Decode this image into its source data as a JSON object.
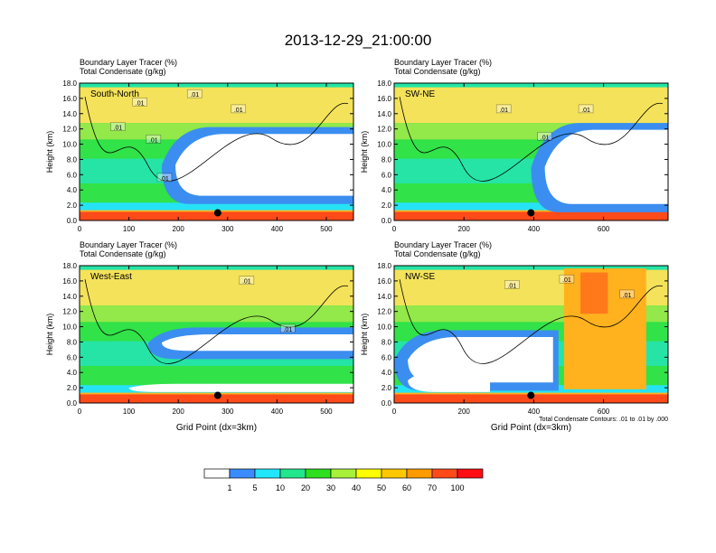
{
  "title": "2013-12-29_21:00:00",
  "chart_data": [
    {
      "type": "heatmap",
      "panel_label": "South-North",
      "subtitle_lines": [
        "Boundary Layer Tracer   (%)",
        "Total Condensate   (g/kg)"
      ],
      "ylabel": "Height (km)",
      "xlabel": "",
      "xlim": [
        0,
        555
      ],
      "ylim": [
        0,
        18
      ],
      "x_ticks": [
        0,
        100,
        200,
        300,
        400,
        500
      ],
      "y_ticks": [
        "0.0",
        "2.0",
        "4.0",
        "6.0",
        "8.0",
        "10.0",
        "12.0",
        "14.0",
        "16.0",
        "18.0"
      ],
      "contour_labels": [
        ".01",
        ".01",
        ".01",
        ".01",
        ".01",
        ".01"
      ],
      "marker": {
        "x": 280,
        "y": 1.0
      }
    },
    {
      "type": "heatmap",
      "panel_label": "SW-NE",
      "subtitle_lines": [
        "Boundary Layer Tracer   (%)",
        "Total Condensate   (g/kg)"
      ],
      "ylabel": "Height (km)",
      "xlabel": "",
      "xlim": [
        0,
        785
      ],
      "ylim": [
        0,
        18
      ],
      "x_ticks": [
        0,
        200,
        400,
        600
      ],
      "y_ticks": [
        "0.0",
        "2.0",
        "4.0",
        "6.0",
        "8.0",
        "10.0",
        "12.0",
        "14.0",
        "16.0",
        "18.0"
      ],
      "contour_labels": [
        ".01",
        ".01",
        ".01"
      ],
      "marker": {
        "x": 392,
        "y": 1.0
      }
    },
    {
      "type": "heatmap",
      "panel_label": "West-East",
      "subtitle_lines": [
        "Boundary Layer Tracer   (%)",
        "Total Condensate   (g/kg)"
      ],
      "ylabel": "Height (km)",
      "xlabel": "Grid Point (dx=3km)",
      "xlim": [
        0,
        555
      ],
      "ylim": [
        0,
        18
      ],
      "x_ticks": [
        0,
        100,
        200,
        300,
        400,
        500
      ],
      "y_ticks": [
        "0.0",
        "2.0",
        "4.0",
        "6.0",
        "8.0",
        "10.0",
        "12.0",
        "14.0",
        "16.0",
        "18.0"
      ],
      "contour_labels": [
        ".01",
        ".01"
      ],
      "marker": {
        "x": 280,
        "y": 1.0
      }
    },
    {
      "type": "heatmap",
      "panel_label": "NW-SE",
      "subtitle_lines": [
        "Boundary Layer Tracer   (%)",
        "Total Condensate   (g/kg)"
      ],
      "ylabel": "Height (km)",
      "xlabel": "Grid Point (dx=3km)",
      "xlim": [
        0,
        785
      ],
      "ylim": [
        0,
        18
      ],
      "x_ticks": [
        0,
        200,
        400,
        600
      ],
      "y_ticks": [
        "0.0",
        "2.0",
        "4.0",
        "6.0",
        "8.0",
        "10.0",
        "12.0",
        "14.0",
        "16.0",
        "18.0"
      ],
      "contour_labels": [
        ".01",
        ".01",
        ".01"
      ],
      "marker": {
        "x": 392,
        "y": 1.0
      },
      "annotation": "Total Condensate Contours: .01 to .01 by .000"
    }
  ],
  "colorbar": {
    "levels": [
      "1",
      "5",
      "10",
      "20",
      "30",
      "40",
      "50",
      "60",
      "70",
      "100"
    ],
    "colors": [
      "#ffffff",
      "#3a8cff",
      "#20e6ff",
      "#22e68c",
      "#2edf1e",
      "#a8f03a",
      "#ffff00",
      "#ffc800",
      "#ff9a00",
      "#ff4a1a",
      "#ff0f14"
    ]
  },
  "colors": {
    "tropo_upper": "#f4e25a",
    "tropo_mid": "#93e84a",
    "green": "#31e248",
    "teal": "#25e4a6",
    "blue": "#3b8ef0",
    "cyan": "#26e2f5",
    "orange": "#ffb21e",
    "red_surface": "#ff4a1a",
    "white": "#ffffff"
  }
}
